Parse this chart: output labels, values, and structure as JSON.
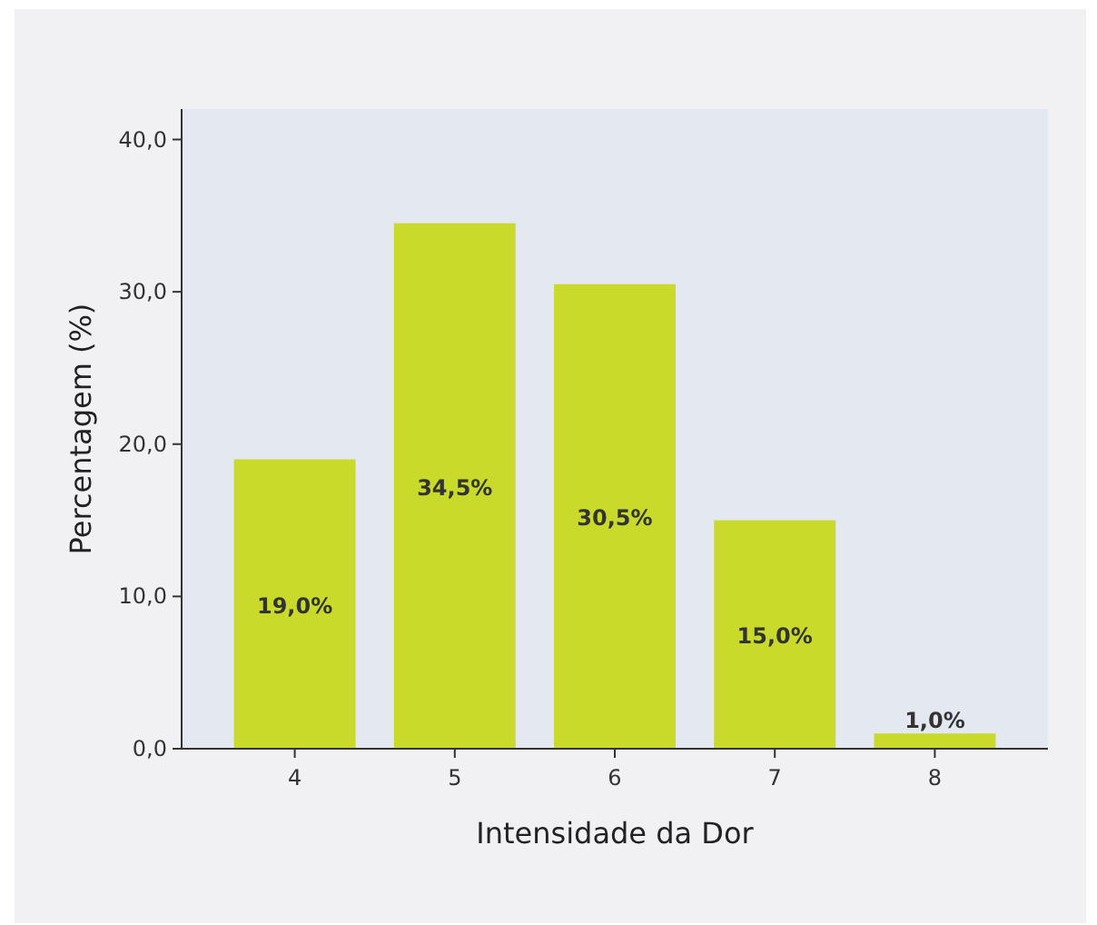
{
  "chart_data": {
    "type": "bar",
    "xlabel": "Intensidade da Dor",
    "ylabel": "Percentagem (%)",
    "categories": [
      "4",
      "5",
      "6",
      "7",
      "8"
    ],
    "values": [
      19.0,
      34.5,
      30.5,
      15.0,
      1.0
    ],
    "value_labels": [
      "19,0%",
      "34,5%",
      "30,5%",
      "15,0%",
      "1,0%"
    ],
    "color": "#c9da2b",
    "ylim": [
      0,
      42
    ],
    "yticks": [
      {
        "value": 0,
        "label": "0,0"
      },
      {
        "value": 10,
        "label": "10,0"
      },
      {
        "value": 20,
        "label": "20,0"
      },
      {
        "value": 30,
        "label": "30,0"
      },
      {
        "value": 40,
        "label": "40,0"
      }
    ],
    "grid": false
  }
}
